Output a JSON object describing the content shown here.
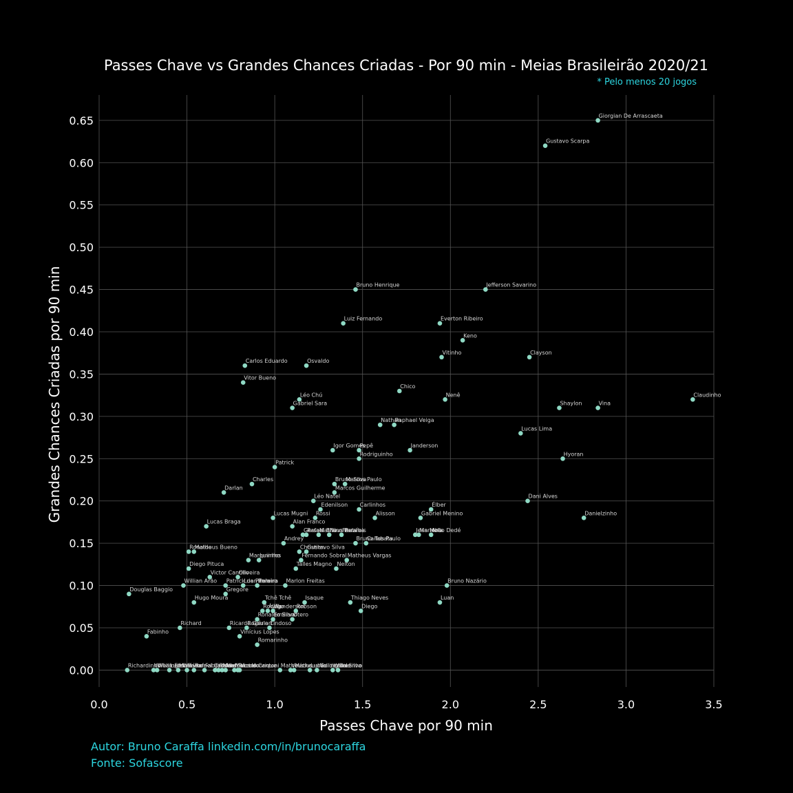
{
  "chart_data": {
    "type": "scatter",
    "title": "Passes Chave vs Grandes Chances Criadas - Por 90 min - Meias Brasileirão 2020/21",
    "subtitle": "* Pelo menos 20 jogos",
    "xlabel": "Passes Chave por 90 min",
    "ylabel": "Grandes Chances Criadas por 90 min",
    "xlim": [
      0,
      3.5
    ],
    "ylim": [
      -0.02,
      0.68
    ],
    "xticks": [
      "0.0",
      "0.5",
      "1.0",
      "1.5",
      "2.0",
      "2.5",
      "3.0",
      "3.5"
    ],
    "yticks": [
      "0.00",
      "0.05",
      "0.10",
      "0.15",
      "0.20",
      "0.25",
      "0.30",
      "0.35",
      "0.40",
      "0.45",
      "0.50",
      "0.55",
      "0.60",
      "0.65"
    ],
    "points": [
      {
        "name": "Giorgian De Arrascaeta",
        "x": 2.84,
        "y": 0.65
      },
      {
        "name": "Gustavo Scarpa",
        "x": 2.54,
        "y": 0.62
      },
      {
        "name": "Bruno Henrique",
        "x": 1.46,
        "y": 0.45
      },
      {
        "name": "Jefferson Savarino",
        "x": 2.2,
        "y": 0.45
      },
      {
        "name": "Luiz Fernando",
        "x": 1.39,
        "y": 0.41
      },
      {
        "name": "Everton Ribeiro",
        "x": 1.94,
        "y": 0.41
      },
      {
        "name": "Keno",
        "x": 2.07,
        "y": 0.39
      },
      {
        "name": "Vitinho",
        "x": 1.95,
        "y": 0.37
      },
      {
        "name": "Clayson",
        "x": 2.45,
        "y": 0.37
      },
      {
        "name": "Carlos Eduardo",
        "x": 0.83,
        "y": 0.36
      },
      {
        "name": "Osvaldo",
        "x": 1.18,
        "y": 0.36
      },
      {
        "name": "Vitor Bueno",
        "x": 0.82,
        "y": 0.34
      },
      {
        "name": "Chico",
        "x": 1.71,
        "y": 0.33
      },
      {
        "name": "Nenê",
        "x": 1.97,
        "y": 0.32
      },
      {
        "name": "Claudinho",
        "x": 3.38,
        "y": 0.32
      },
      {
        "name": "Léo Chú",
        "x": 1.14,
        "y": 0.32
      },
      {
        "name": "Gabriel Sara",
        "x": 1.1,
        "y": 0.31
      },
      {
        "name": "Shaylon",
        "x": 2.62,
        "y": 0.31
      },
      {
        "name": "Vina",
        "x": 2.84,
        "y": 0.31
      },
      {
        "name": "Nathan",
        "x": 1.6,
        "y": 0.29
      },
      {
        "name": "Raphael Veiga",
        "x": 1.68,
        "y": 0.29
      },
      {
        "name": "Lucas Lima",
        "x": 2.4,
        "y": 0.28
      },
      {
        "name": "Igor Gomes",
        "x": 1.33,
        "y": 0.26
      },
      {
        "name": "Pepê",
        "x": 1.48,
        "y": 0.26
      },
      {
        "name": "Janderson",
        "x": 1.77,
        "y": 0.26
      },
      {
        "name": "Rodriguinho",
        "x": 1.48,
        "y": 0.25
      },
      {
        "name": "Hyoran",
        "x": 2.64,
        "y": 0.25
      },
      {
        "name": "Patrick",
        "x": 1.0,
        "y": 0.24
      },
      {
        "name": "Charles",
        "x": 0.87,
        "y": 0.22
      },
      {
        "name": "Bruno Silva",
        "x": 1.34,
        "y": 0.22
      },
      {
        "name": "Marcos Paulo",
        "x": 1.4,
        "y": 0.22
      },
      {
        "name": "Darlan",
        "x": 0.71,
        "y": 0.21
      },
      {
        "name": "Marcos Guilherme",
        "x": 1.34,
        "y": 0.21
      },
      {
        "name": "Léo Natel",
        "x": 1.22,
        "y": 0.2
      },
      {
        "name": "Dani Alves",
        "x": 2.44,
        "y": 0.2
      },
      {
        "name": "Edenilson",
        "x": 1.26,
        "y": 0.19
      },
      {
        "name": "Carlinhos",
        "x": 1.48,
        "y": 0.19
      },
      {
        "name": "Élber",
        "x": 1.89,
        "y": 0.19
      },
      {
        "name": "Lucas Mugni",
        "x": 0.99,
        "y": 0.18
      },
      {
        "name": "Rossi",
        "x": 1.23,
        "y": 0.18
      },
      {
        "name": "Alisson",
        "x": 1.57,
        "y": 0.18
      },
      {
        "name": "Gabriel Menino",
        "x": 1.83,
        "y": 0.18
      },
      {
        "name": "Danielzinho",
        "x": 2.76,
        "y": 0.18
      },
      {
        "name": "Lucas Braga",
        "x": 0.61,
        "y": 0.17
      },
      {
        "name": "Alan Franco",
        "x": 1.1,
        "y": 0.17
      },
      {
        "name": "Gerson",
        "x": 1.16,
        "y": 0.16
      },
      {
        "name": "Rafael Bilu",
        "x": 1.18,
        "y": 0.16
      },
      {
        "name": "Matheus Babi",
        "x": 1.25,
        "y": 0.16
      },
      {
        "name": "Nino Paraíba",
        "x": 1.31,
        "y": 0.16
      },
      {
        "name": "Ferrareis",
        "x": 1.38,
        "y": 0.16
      },
      {
        "name": "Jean Mota",
        "x": 1.8,
        "y": 0.16
      },
      {
        "name": "Marinho",
        "x": 1.82,
        "y": 0.16
      },
      {
        "name": "Arão Dedé",
        "x": 1.89,
        "y": 0.16
      },
      {
        "name": "Andrey",
        "x": 1.05,
        "y": 0.15
      },
      {
        "name": "Bruno Tabata",
        "x": 1.46,
        "y": 0.15
      },
      {
        "name": "Carlos Paulo",
        "x": 1.52,
        "y": 0.15
      },
      {
        "name": "Ronaldo",
        "x": 0.51,
        "y": 0.14
      },
      {
        "name": "Matheus Bueno",
        "x": 0.54,
        "y": 0.14
      },
      {
        "name": "Christian",
        "x": 1.14,
        "y": 0.14
      },
      {
        "name": "Gustavo Silva",
        "x": 1.18,
        "y": 0.14
      },
      {
        "name": "Marquinhos",
        "x": 0.85,
        "y": 0.13
      },
      {
        "name": "Juninho",
        "x": 0.91,
        "y": 0.13
      },
      {
        "name": "Fernando Sobral",
        "x": 1.15,
        "y": 0.13
      },
      {
        "name": "Matheus Vargas",
        "x": 1.41,
        "y": 0.13
      },
      {
        "name": "Diego Pituca",
        "x": 0.51,
        "y": 0.12
      },
      {
        "name": "Talles Magno",
        "x": 1.12,
        "y": 0.12
      },
      {
        "name": "Nelton",
        "x": 1.35,
        "y": 0.12
      },
      {
        "name": "Victor Cantillo",
        "x": 0.63,
        "y": 0.11
      },
      {
        "name": "Oliveira",
        "x": 0.79,
        "y": 0.11
      },
      {
        "name": "Willian Arão",
        "x": 0.48,
        "y": 0.1
      },
      {
        "name": "Patrick de Paula",
        "x": 0.72,
        "y": 0.1
      },
      {
        "name": "Luan Pereira",
        "x": 0.82,
        "y": 0.1
      },
      {
        "name": "Ramiro",
        "x": 0.9,
        "y": 0.1
      },
      {
        "name": "Marlon Freitas",
        "x": 1.06,
        "y": 0.1
      },
      {
        "name": "Bruno Nazário",
        "x": 1.98,
        "y": 0.1
      },
      {
        "name": "Douglas Baggio",
        "x": 0.17,
        "y": 0.09
      },
      {
        "name": "Gregore",
        "x": 0.72,
        "y": 0.09
      },
      {
        "name": "Hugo Moura",
        "x": 0.54,
        "y": 0.08
      },
      {
        "name": "Tchê Tchê",
        "x": 0.94,
        "y": 0.08
      },
      {
        "name": "Isaque",
        "x": 1.17,
        "y": 0.08
      },
      {
        "name": "Thiago Neves",
        "x": 1.43,
        "y": 0.08
      },
      {
        "name": "Luan",
        "x": 1.94,
        "y": 0.08
      },
      {
        "name": "Rodrigo",
        "x": 0.93,
        "y": 0.07
      },
      {
        "name": "Ávila",
        "x": 0.96,
        "y": 0.07
      },
      {
        "name": "Wanderson",
        "x": 0.99,
        "y": 0.07
      },
      {
        "name": "Robson",
        "x": 1.12,
        "y": 0.07
      },
      {
        "name": "Diego",
        "x": 1.49,
        "y": 0.07
      },
      {
        "name": "Ronaldo Silva",
        "x": 0.9,
        "y": 0.06
      },
      {
        "name": "Emiliano",
        "x": 0.99,
        "y": 0.06
      },
      {
        "name": "Otero",
        "x": 1.1,
        "y": 0.06
      },
      {
        "name": "Richard",
        "x": 0.46,
        "y": 0.05
      },
      {
        "name": "Ricardo Goulart",
        "x": 0.74,
        "y": 0.05
      },
      {
        "name": "Rogério",
        "x": 0.84,
        "y": 0.05
      },
      {
        "name": "Lindoso",
        "x": 0.97,
        "y": 0.05
      },
      {
        "name": "Fabinho",
        "x": 0.27,
        "y": 0.04
      },
      {
        "name": "Vinícius Lopes",
        "x": 0.8,
        "y": 0.04
      },
      {
        "name": "Romarinho",
        "x": 0.9,
        "y": 0.03
      },
      {
        "name": "Richardinho",
        "x": 0.16,
        "y": 0.0
      },
      {
        "name": "Willian Farias",
        "x": 0.31,
        "y": 0.0
      },
      {
        "name": "Wellington",
        "x": 0.33,
        "y": 0.0
      },
      {
        "name": "Luiz Otávio",
        "x": 0.4,
        "y": 0.0
      },
      {
        "name": "Maurício",
        "x": 0.45,
        "y": 0.0
      },
      {
        "name": "Ramon",
        "x": 0.5,
        "y": 0.0
      },
      {
        "name": "Rafael Carioca",
        "x": 0.54,
        "y": 0.0
      },
      {
        "name": "Fabrício",
        "x": 0.6,
        "y": 0.0
      },
      {
        "name": "Jadson",
        "x": 0.66,
        "y": 0.0
      },
      {
        "name": "Rafael",
        "x": 0.68,
        "y": 0.0
      },
      {
        "name": "Mateus",
        "x": 0.7,
        "y": 0.0
      },
      {
        "name": "Matheus Henrique",
        "x": 0.72,
        "y": 0.0
      },
      {
        "name": "Marcelo",
        "x": 0.77,
        "y": 0.0
      },
      {
        "name": "Ricardo",
        "x": 0.79,
        "y": 0.0
      },
      {
        "name": "Victor Cantoni",
        "x": 0.8,
        "y": 0.0
      },
      {
        "name": "Matheus",
        "x": 1.03,
        "y": 0.0
      },
      {
        "name": "Vinícius",
        "x": 1.09,
        "y": 0.0
      },
      {
        "name": "Matheus Galdezani",
        "x": 1.11,
        "y": 0.0
      },
      {
        "name": "Lucas",
        "x": 1.2,
        "y": 0.0
      },
      {
        "name": "Wellington Silva",
        "x": 1.24,
        "y": 0.0
      },
      {
        "name": "Willian",
        "x": 1.33,
        "y": 0.0
      },
      {
        "name": "Celsinho",
        "x": 1.36,
        "y": 0.0
      }
    ],
    "grid": true,
    "point_color": "#8fd9c4"
  },
  "footer": {
    "author": "Autor: Bruno Caraffa linkedin.com/in/brunocaraffa",
    "source": "Fonte: Sofascore"
  }
}
